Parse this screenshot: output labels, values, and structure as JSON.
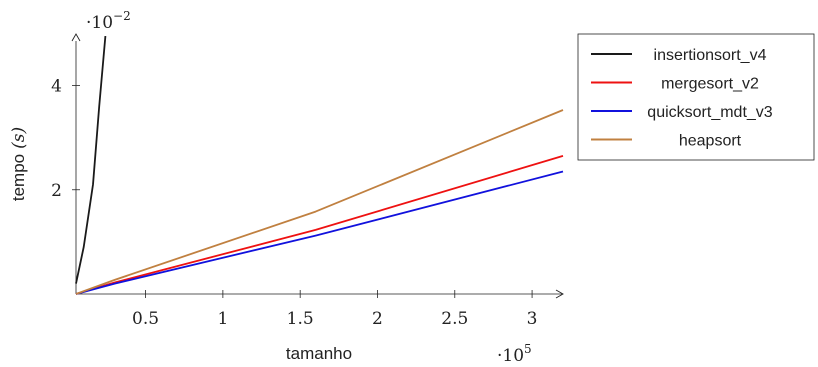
{
  "chart_data": {
    "type": "line",
    "xlabel": "tamanho",
    "ylabel": "tempo",
    "ylabel_unit": "(s)",
    "x_multiplier": "·10",
    "x_multiplier_exp": "5",
    "y_multiplier": "·10",
    "y_multiplier_exp": "−2",
    "xlim": [
      0.05,
      3.2
    ],
    "ylim": [
      0,
      4.95
    ],
    "x_ticks": [
      0.5,
      1,
      1.5,
      2,
      2.5,
      3
    ],
    "x_tick_labels": [
      "0.5",
      "1",
      "1.5",
      "2",
      "2.5",
      "3"
    ],
    "y_ticks": [
      2,
      4
    ],
    "y_tick_labels": [
      "2",
      "4"
    ],
    "legend_position": "top-right",
    "series": [
      {
        "name": "insertionsort_v4",
        "color": "#1a1a1a",
        "x": [
          0.05,
          0.1,
          0.16,
          0.2,
          0.24
        ],
        "y": [
          0.2,
          0.9,
          2.1,
          3.6,
          4.95
        ]
      },
      {
        "name": "mergesort_v2",
        "color": "#ee1111",
        "x": [
          0.05,
          0.3,
          1.6,
          3.2
        ],
        "y": [
          0,
          0.22,
          1.23,
          2.65
        ]
      },
      {
        "name": "quicksort_mdt_v3",
        "color": "#1111dd",
        "x": [
          0.05,
          0.3,
          1.6,
          3.2
        ],
        "y": [
          0,
          0.2,
          1.12,
          2.35
        ]
      },
      {
        "name": "heapsort",
        "color": "#c08040",
        "x": [
          0.05,
          0.3,
          1.6,
          3.2
        ],
        "y": [
          0,
          0.27,
          1.58,
          3.53
        ]
      }
    ]
  }
}
